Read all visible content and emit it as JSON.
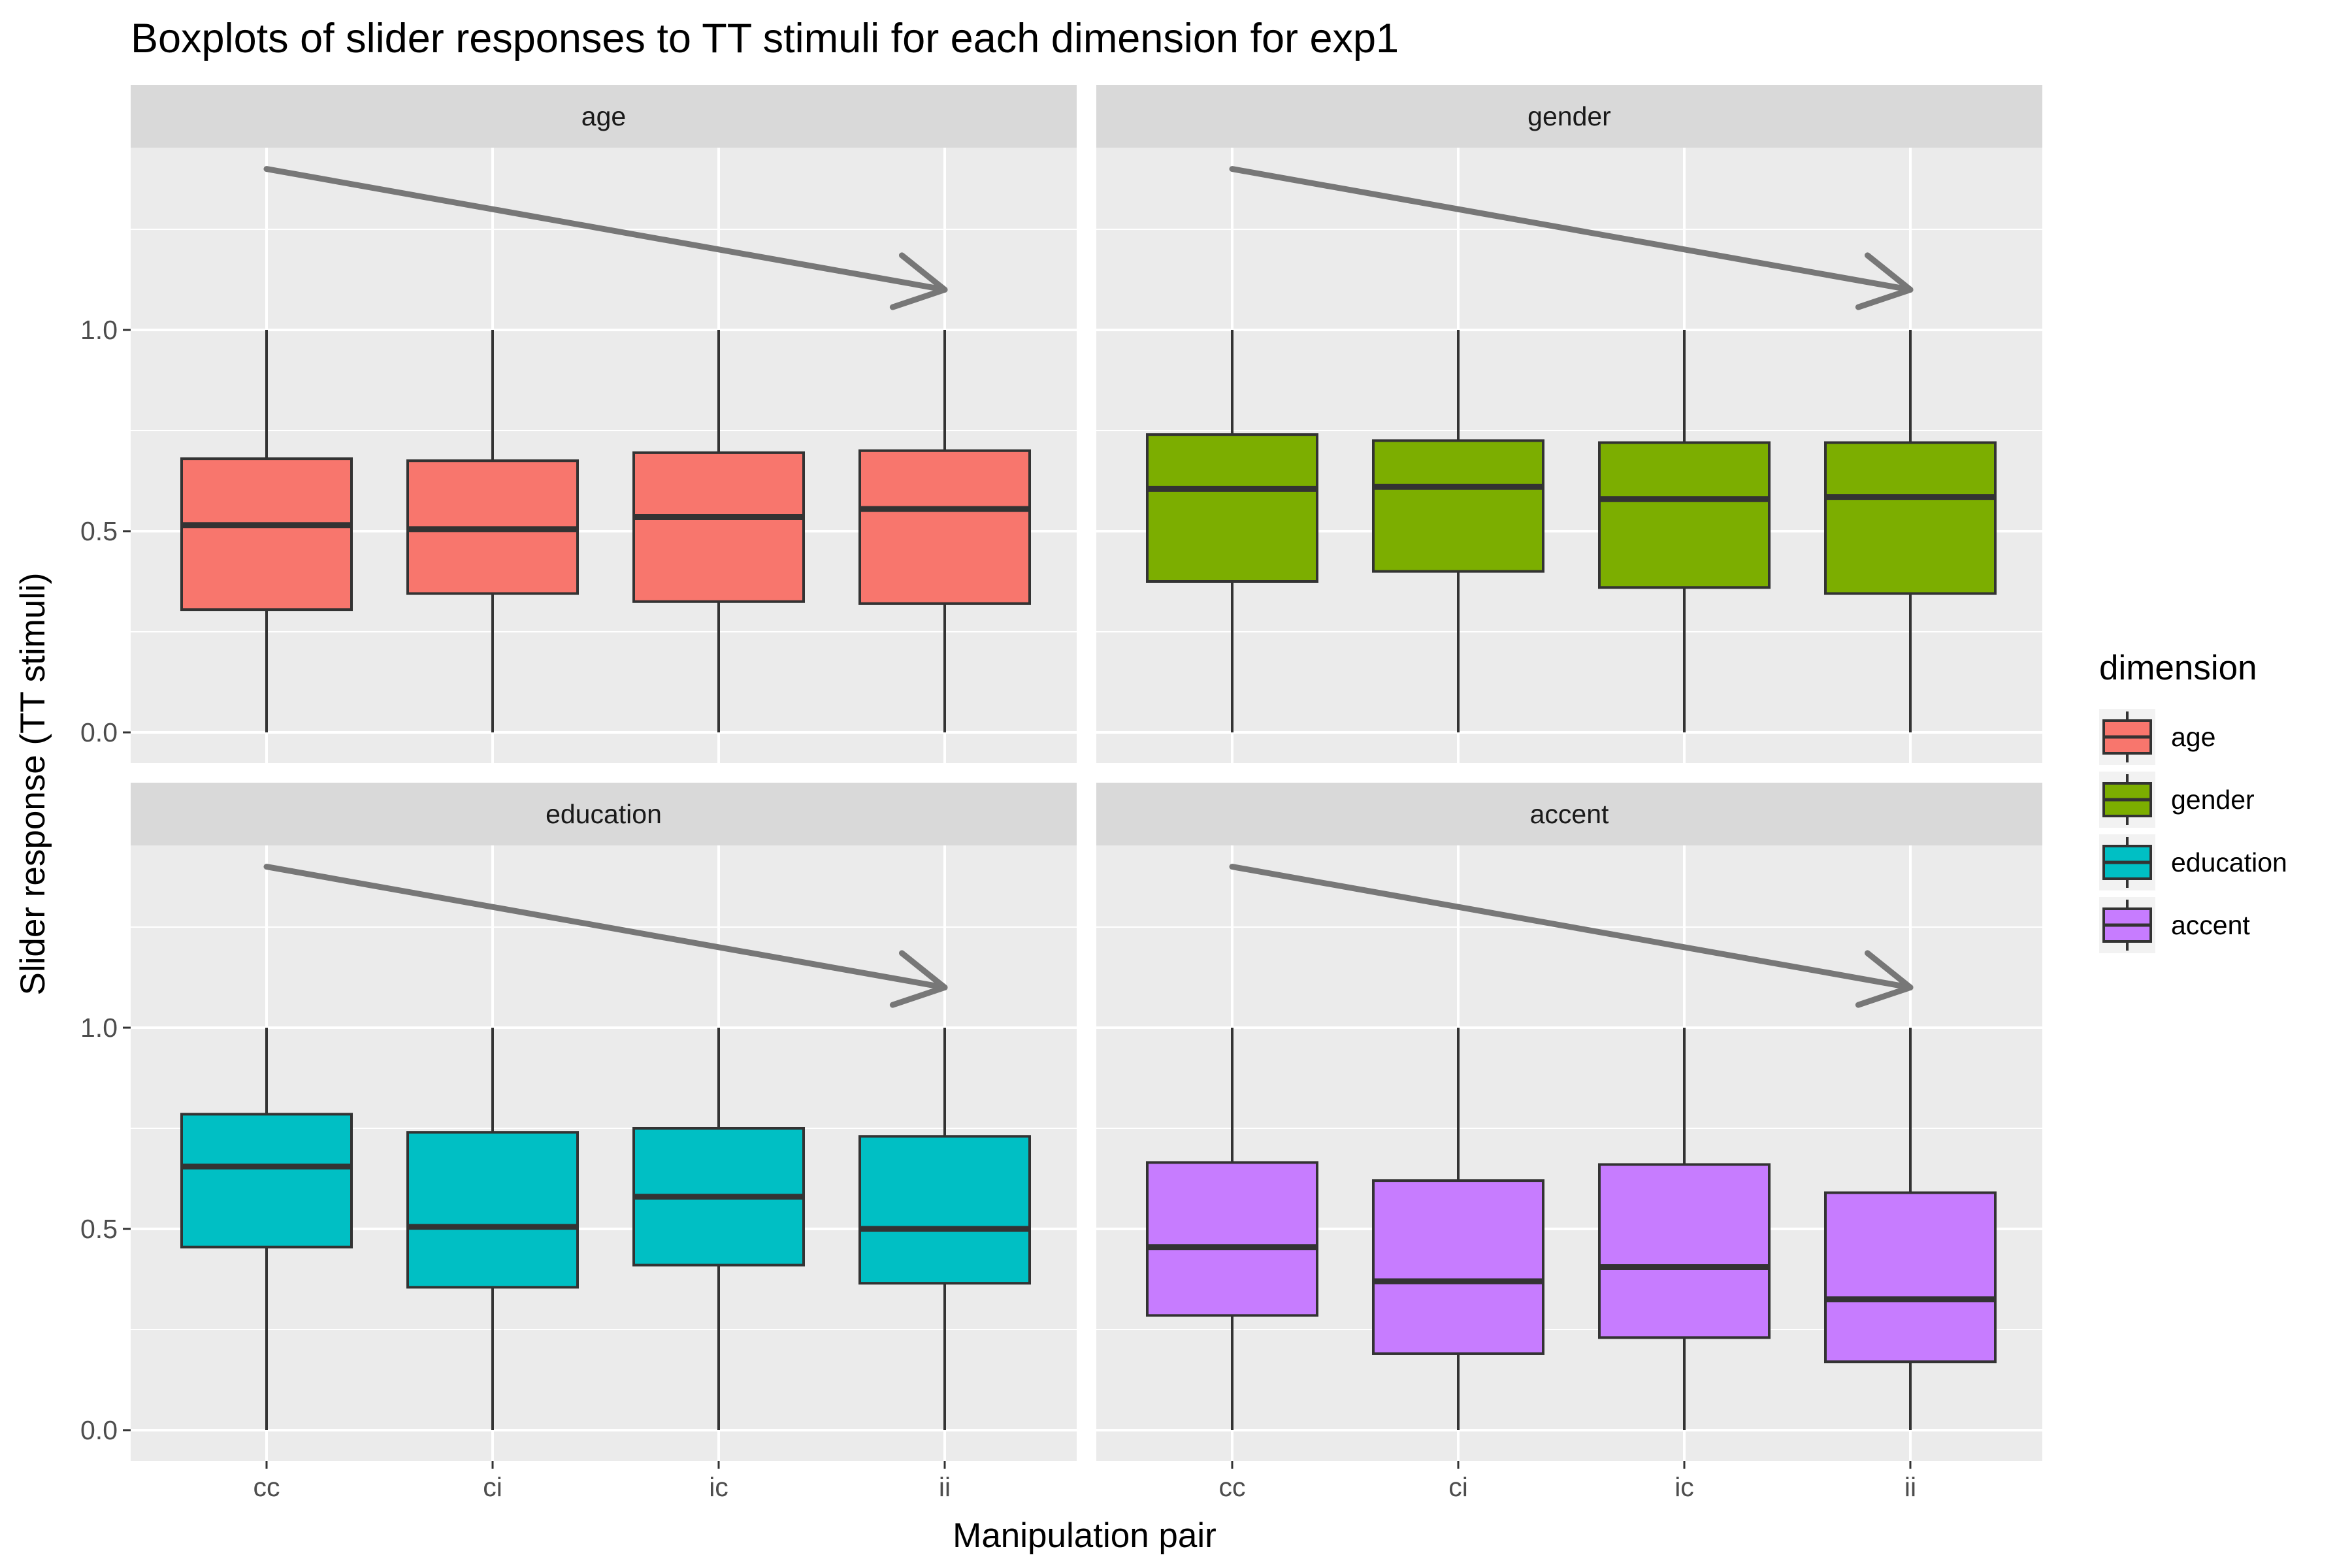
{
  "chart_data": {
    "type": "box",
    "title": "Boxplots of slider responses to TT stimuli for each dimension for exp1",
    "xlabel": "Manipulation pair",
    "ylabel": "Slider response (TT stimuli)",
    "categories": [
      "cc",
      "ci",
      "ic",
      "ii"
    ],
    "yticks": [
      0.0,
      0.5,
      1.0
    ],
    "ytick_labels": [
      "0.0",
      "0.5",
      "1.0"
    ],
    "ylim": [
      0,
      1.5
    ],
    "facet_layout": "2x2",
    "grid": true,
    "legend": {
      "title": "dimension",
      "position": "right",
      "items": [
        {
          "label": "age",
          "color": "#F8766D"
        },
        {
          "label": "gender",
          "color": "#7CAE00"
        },
        {
          "label": "education",
          "color": "#00BFC4"
        },
        {
          "label": "accent",
          "color": "#C77CFF"
        }
      ]
    },
    "arrow": {
      "from": {
        "x": "cc",
        "y": 1.4
      },
      "to": {
        "x": "ii",
        "y": 1.1
      },
      "color": "#777777"
    },
    "facets": [
      {
        "name": "age",
        "color": "#F8766D",
        "boxes": [
          {
            "x": "cc",
            "min": 0.0,
            "q1": 0.305,
            "median": 0.515,
            "q3": 0.68,
            "max": 1.0
          },
          {
            "x": "ci",
            "min": 0.0,
            "q1": 0.345,
            "median": 0.505,
            "q3": 0.675,
            "max": 1.0
          },
          {
            "x": "ic",
            "min": 0.0,
            "q1": 0.325,
            "median": 0.535,
            "q3": 0.695,
            "max": 1.0
          },
          {
            "x": "ii",
            "min": 0.0,
            "q1": 0.32,
            "median": 0.555,
            "q3": 0.7,
            "max": 1.0
          }
        ]
      },
      {
        "name": "gender",
        "color": "#7CAE00",
        "boxes": [
          {
            "x": "cc",
            "min": 0.0,
            "q1": 0.375,
            "median": 0.605,
            "q3": 0.74,
            "max": 1.0
          },
          {
            "x": "ci",
            "min": 0.0,
            "q1": 0.4,
            "median": 0.61,
            "q3": 0.725,
            "max": 1.0
          },
          {
            "x": "ic",
            "min": 0.0,
            "q1": 0.36,
            "median": 0.58,
            "q3": 0.72,
            "max": 1.0
          },
          {
            "x": "ii",
            "min": 0.0,
            "q1": 0.345,
            "median": 0.585,
            "q3": 0.72,
            "max": 1.0
          }
        ]
      },
      {
        "name": "education",
        "color": "#00BFC4",
        "boxes": [
          {
            "x": "cc",
            "min": 0.0,
            "q1": 0.455,
            "median": 0.655,
            "q3": 0.785,
            "max": 1.0
          },
          {
            "x": "ci",
            "min": 0.0,
            "q1": 0.355,
            "median": 0.505,
            "q3": 0.74,
            "max": 1.0
          },
          {
            "x": "ic",
            "min": 0.0,
            "q1": 0.41,
            "median": 0.58,
            "q3": 0.75,
            "max": 1.0
          },
          {
            "x": "ii",
            "min": 0.0,
            "q1": 0.365,
            "median": 0.5,
            "q3": 0.73,
            "max": 1.0
          }
        ]
      },
      {
        "name": "accent",
        "color": "#C77CFF",
        "boxes": [
          {
            "x": "cc",
            "min": 0.0,
            "q1": 0.285,
            "median": 0.455,
            "q3": 0.665,
            "max": 1.0
          },
          {
            "x": "ci",
            "min": 0.0,
            "q1": 0.19,
            "median": 0.37,
            "q3": 0.62,
            "max": 1.0
          },
          {
            "x": "ic",
            "min": 0.0,
            "q1": 0.23,
            "median": 0.405,
            "q3": 0.66,
            "max": 1.0
          },
          {
            "x": "ii",
            "min": 0.0,
            "q1": 0.17,
            "median": 0.325,
            "q3": 0.59,
            "max": 1.0
          }
        ]
      }
    ]
  }
}
